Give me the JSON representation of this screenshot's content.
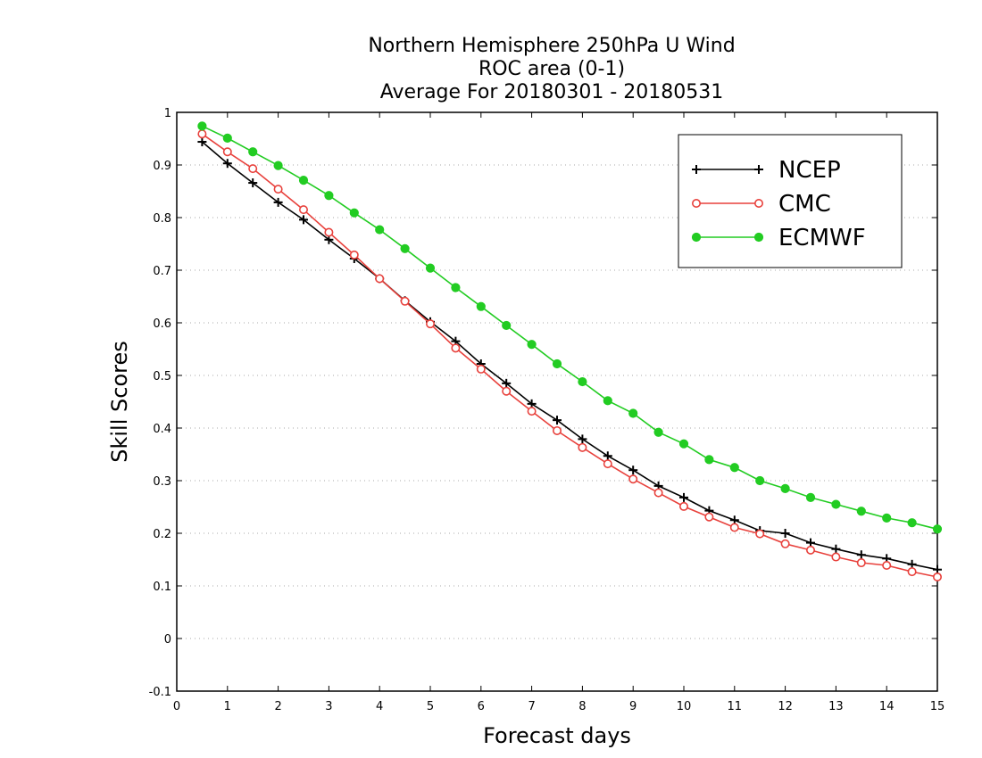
{
  "chart_data": {
    "type": "line",
    "title": [
      "Northern Hemisphere 250hPa U Wind",
      "ROC area (0-1)",
      "Average For 20180301 - 20180531"
    ],
    "xlabel": "Forecast days",
    "ylabel": "Skill Scores",
    "xlim": [
      0,
      15
    ],
    "ylim": [
      -0.1,
      1
    ],
    "x_ticks": [
      "0",
      "1",
      "2",
      "3",
      "4",
      "5",
      "6",
      "7",
      "8",
      "9",
      "10",
      "11",
      "12",
      "13",
      "14",
      "15"
    ],
    "y_ticks": [
      "-0.1",
      "0",
      "0.1",
      "0.2",
      "0.3",
      "0.4",
      "0.5",
      "0.6",
      "0.7",
      "0.8",
      "0.9",
      "1"
    ],
    "grid": "horizontal dotted",
    "legend_position": "top-right",
    "x": [
      0.5,
      1,
      1.5,
      2,
      2.5,
      3,
      3.5,
      4,
      4.5,
      5,
      5.5,
      6,
      6.5,
      7,
      7.5,
      8,
      8.5,
      9,
      9.5,
      10,
      10.5,
      11,
      11.5,
      12,
      12.5,
      13,
      13.5,
      14,
      14.5,
      15
    ],
    "series": [
      {
        "name": "NCEP",
        "color": "#000000",
        "marker": "plus",
        "values": [
          0.944,
          0.903,
          0.866,
          0.829,
          0.796,
          0.758,
          0.722,
          0.684,
          0.642,
          0.602,
          0.565,
          0.522,
          0.485,
          0.446,
          0.415,
          0.379,
          0.347,
          0.32,
          0.29,
          0.268,
          0.243,
          0.225,
          0.205,
          0.2,
          0.182,
          0.17,
          0.159,
          0.152,
          0.141,
          0.131
        ]
      },
      {
        "name": "CMC",
        "color": "#e8413c",
        "marker": "open-circle",
        "values": [
          0.959,
          0.925,
          0.893,
          0.854,
          0.815,
          0.772,
          0.729,
          0.684,
          0.641,
          0.598,
          0.552,
          0.512,
          0.47,
          0.432,
          0.395,
          0.363,
          0.332,
          0.303,
          0.277,
          0.251,
          0.231,
          0.211,
          0.199,
          0.18,
          0.168,
          0.155,
          0.144,
          0.139,
          0.127,
          0.117
        ]
      },
      {
        "name": "ECMWF",
        "color": "#22cc22",
        "marker": "filled-circle",
        "values": [
          0.974,
          0.951,
          0.925,
          0.899,
          0.871,
          0.842,
          0.809,
          0.777,
          0.741,
          0.704,
          0.667,
          0.631,
          0.595,
          0.559,
          0.522,
          0.488,
          0.452,
          0.428,
          0.392,
          0.37,
          0.34,
          0.325,
          0.3,
          0.285,
          0.268,
          0.255,
          0.242,
          0.229,
          0.22,
          0.208
        ]
      }
    ]
  }
}
